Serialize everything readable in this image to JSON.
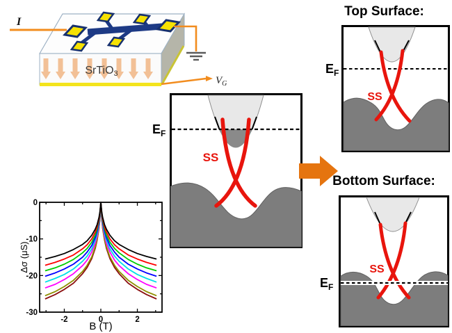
{
  "device": {
    "current_label": "I",
    "substrate": "SrTiO",
    "substrate_sub": "3",
    "gate_label": "V",
    "gate_label_sub": "G"
  },
  "panels": {
    "middle": {
      "ef": "E",
      "ef_sub": "F",
      "ss": "SS"
    },
    "top": {
      "title": "Top Surface:",
      "ef": "E",
      "ef_sub": "F",
      "ss": "SS"
    },
    "bottom": {
      "title": "Bottom Surface:",
      "ef": "E",
      "ef_sub": "F",
      "ss": "SS"
    }
  },
  "colors": {
    "surface_state_red": "#e8150d",
    "valence_gray": "#7d7d7d",
    "conduction_gray": "#e8e8e8",
    "arrow_orange": "#e5740f",
    "wire_orange": "#f28c1e",
    "hallbar_navy": "#1d3a85",
    "pad_yellow": "#f6e203",
    "gate_yellow": "#f3e41c"
  },
  "chart_data": {
    "type": "line",
    "title": "",
    "xlabel": "B (T)",
    "ylabel": "Δσ (μS)",
    "xlim": [
      -3.35,
      3.35
    ],
    "ylim": [
      -30,
      0
    ],
    "xticks_major": [
      -2,
      0,
      2
    ],
    "xticks_minor": [
      -3,
      -1,
      1,
      3
    ],
    "yticks_major": [
      0,
      -10,
      -20,
      -30
    ],
    "yticks_minor": [
      -5,
      -15,
      -25
    ],
    "grid": false,
    "legend": "none",
    "symmetric_in_B": true,
    "B_abs": [
      0,
      0.05,
      0.1,
      0.2,
      0.3,
      0.5,
      0.75,
      1,
      1.5,
      2,
      2.5,
      3.05
    ],
    "series": [
      {
        "name": "darkred",
        "color": "#8b0f0f",
        "values": [
          0,
          -4.5,
          -7.1,
          -10.3,
          -12.5,
          -15.4,
          -17.8,
          -19.5,
          -22.1,
          -23.8,
          -25.2,
          -26.4
        ]
      },
      {
        "name": "olive",
        "color": "#8f8f00",
        "values": [
          0,
          -4.3,
          -6.8,
          -10.0,
          -12.1,
          -14.9,
          -17.2,
          -18.9,
          -21.3,
          -23.0,
          -24.4,
          -25.5
        ]
      },
      {
        "name": "magenta",
        "color": "#ff00ff",
        "values": [
          0,
          -3.9,
          -6.3,
          -9.2,
          -11.1,
          -13.6,
          -15.8,
          -17.3,
          -19.5,
          -21.1,
          -22.4,
          -23.4
        ]
      },
      {
        "name": "cyan",
        "color": "#00dfe8",
        "values": [
          0,
          -3.7,
          -5.8,
          -8.5,
          -10.3,
          -12.7,
          -14.7,
          -16.1,
          -18.2,
          -19.7,
          -20.8,
          -21.8
        ]
      },
      {
        "name": "blue",
        "color": "#0000ff",
        "values": [
          0,
          -3.4,
          -5.4,
          -7.9,
          -9.6,
          -11.8,
          -13.6,
          -15.0,
          -16.9,
          -18.2,
          -19.3,
          -20.2
        ]
      },
      {
        "name": "green",
        "color": "#00cc00",
        "values": [
          0,
          -3.2,
          -5.0,
          -7.3,
          -8.9,
          -10.9,
          -12.6,
          -13.8,
          -15.6,
          -16.9,
          -17.9,
          -18.7
        ]
      },
      {
        "name": "red",
        "color": "#ff0000",
        "values": [
          0,
          -2.9,
          -4.6,
          -6.7,
          -8.1,
          -10.0,
          -11.6,
          -12.7,
          -14.4,
          -15.5,
          -16.4,
          -17.2
        ]
      },
      {
        "name": "black",
        "color": "#000000",
        "values": [
          0,
          -2.6,
          -4.1,
          -6.1,
          -7.3,
          -9.0,
          -10.5,
          -11.5,
          -12.9,
          -14.0,
          -14.8,
          -15.5
        ]
      }
    ]
  }
}
